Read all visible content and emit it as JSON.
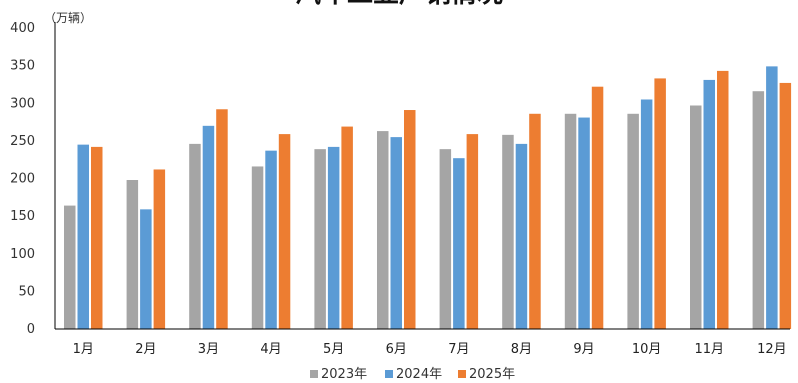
{
  "chart_data": {
    "type": "bar",
    "title": "汽车工业产销情况",
    "unit_label": "（万辆）",
    "ylim": [
      0,
      400
    ],
    "yticks": [
      "0",
      "50",
      "100",
      "150",
      "200",
      "250",
      "300",
      "350",
      "400"
    ],
    "grid": false,
    "legend_position": "bottom-center",
    "categories": [
      "1月",
      "2月",
      "3月",
      "4月",
      "5月",
      "6月",
      "7月",
      "8月",
      "9月",
      "10月",
      "11月",
      "12月"
    ],
    "series": [
      {
        "name": "2023年",
        "color": "#a5a5a5",
        "values": [
          164,
          198,
          246,
          216,
          239,
          263,
          239,
          258,
          286,
          286,
          297,
          316
        ]
      },
      {
        "name": "2024年",
        "color": "#5b9bd5",
        "values": [
          245,
          159,
          270,
          237,
          242,
          255,
          227,
          246,
          281,
          305,
          331,
          349
        ]
      },
      {
        "name": "2025年",
        "color": "#ed7d31",
        "values": [
          242,
          212,
          292,
          259,
          269,
          291,
          259,
          286,
          322,
          333,
          343,
          327
        ]
      }
    ]
  }
}
